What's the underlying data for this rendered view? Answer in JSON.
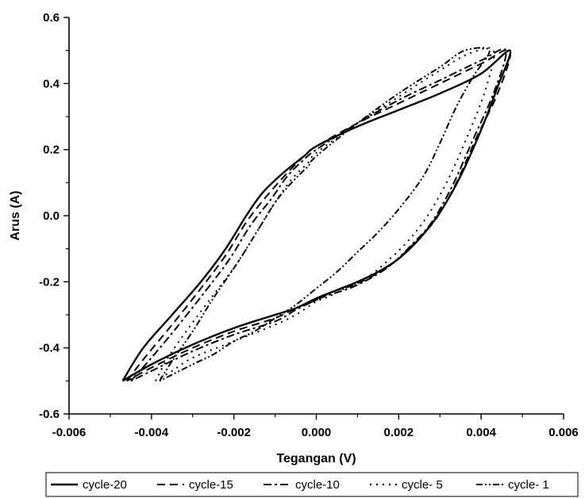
{
  "chart_data": {
    "type": "line",
    "title": "",
    "xlabel": "Tegangan (V)",
    "ylabel": "Arus (A)",
    "xlim": [
      -0.006,
      0.006
    ],
    "ylim": [
      -0.6,
      0.6
    ],
    "x_ticks": [
      -0.006,
      -0.004,
      -0.002,
      0.0,
      0.002,
      0.004,
      0.006
    ],
    "x_tick_labels": [
      "-0.006",
      "-0.004",
      "-0.002",
      "0.000",
      "0.002",
      "0.004",
      "0.006"
    ],
    "y_ticks": [
      -0.6,
      -0.4,
      -0.2,
      0.0,
      0.2,
      0.4,
      0.6
    ],
    "y_tick_labels": [
      "-0.6",
      "-0.4",
      "-0.2",
      "0.0",
      "0.2",
      "0.4",
      "0.6"
    ],
    "grid": false,
    "legend_position": "bottom",
    "series": [
      {
        "name": "cycle-20",
        "dash": "solid",
        "x": [
          -0.0047,
          -0.0042,
          -0.0035,
          -0.0028,
          -0.0022,
          -0.0017,
          -0.0013,
          -0.0008,
          -0.0003,
          0.0,
          0.001,
          0.002,
          0.003,
          0.004,
          0.0047,
          0.0044,
          0.004,
          0.0035,
          0.003,
          0.0025,
          0.002,
          0.0015,
          0.001,
          0.0005,
          0.0,
          -0.0005,
          -0.001,
          -0.002,
          -0.003,
          -0.004,
          -0.0047
        ],
        "y": [
          -0.5,
          -0.4,
          -0.3,
          -0.2,
          -0.1,
          0.0,
          0.07,
          0.13,
          0.18,
          0.21,
          0.27,
          0.32,
          0.37,
          0.43,
          0.5,
          0.39,
          0.26,
          0.12,
          0.01,
          -0.07,
          -0.13,
          -0.17,
          -0.2,
          -0.225,
          -0.25,
          -0.28,
          -0.3,
          -0.34,
          -0.39,
          -0.45,
          -0.5
        ]
      },
      {
        "name": "cycle-15",
        "dash": "dash",
        "x": [
          -0.0046,
          -0.0041,
          -0.0035,
          -0.0028,
          -0.0022,
          -0.0017,
          -0.0012,
          -0.0007,
          -0.0003,
          0.0,
          0.001,
          0.002,
          0.003,
          0.004,
          0.0047,
          0.0044,
          0.0039,
          0.0034,
          0.0029,
          0.0024,
          0.0019,
          0.0014,
          0.0009,
          0.0004,
          0.0,
          -0.0005,
          -0.001,
          -0.002,
          -0.003,
          -0.004,
          -0.0046
        ],
        "y": [
          -0.5,
          -0.42,
          -0.33,
          -0.22,
          -0.12,
          -0.02,
          0.06,
          0.13,
          0.18,
          0.21,
          0.28,
          0.34,
          0.4,
          0.46,
          0.5,
          0.37,
          0.24,
          0.1,
          -0.01,
          -0.08,
          -0.14,
          -0.18,
          -0.21,
          -0.23,
          -0.255,
          -0.28,
          -0.31,
          -0.35,
          -0.4,
          -0.46,
          -0.5
        ]
      },
      {
        "name": "cycle-10",
        "dash": "dashdot",
        "x": [
          -0.0045,
          -0.004,
          -0.0034,
          -0.0027,
          -0.0021,
          -0.0016,
          -0.0011,
          -0.0007,
          -0.0003,
          0.0,
          0.001,
          0.002,
          0.003,
          0.004,
          0.0046,
          0.0043,
          0.0038,
          0.0033,
          0.0028,
          0.0023,
          0.0018,
          0.0013,
          0.0008,
          0.0003,
          0.0,
          -0.0005,
          -0.001,
          -0.002,
          -0.003,
          -0.004,
          -0.0045
        ],
        "y": [
          -0.5,
          -0.43,
          -0.34,
          -0.23,
          -0.13,
          -0.03,
          0.05,
          0.12,
          0.17,
          0.2,
          0.28,
          0.35,
          0.41,
          0.47,
          0.5,
          0.37,
          0.23,
          0.09,
          -0.02,
          -0.09,
          -0.15,
          -0.19,
          -0.22,
          -0.24,
          -0.255,
          -0.285,
          -0.32,
          -0.36,
          -0.41,
          -0.47,
          -0.5
        ]
      },
      {
        "name": "cycle- 5",
        "dash": "dot",
        "x": [
          -0.0039,
          -0.0036,
          -0.0031,
          -0.0025,
          -0.0019,
          -0.0014,
          -0.001,
          -0.0006,
          -0.0002,
          0.0,
          0.001,
          0.002,
          0.003,
          0.0037,
          0.0043,
          0.0041,
          0.0037,
          0.0032,
          0.0027,
          0.0022,
          0.0017,
          0.0012,
          0.0007,
          0.0003,
          0.0,
          -0.0005,
          -0.001,
          -0.002,
          -0.003,
          -0.0035,
          -0.0039
        ],
        "y": [
          -0.5,
          -0.43,
          -0.34,
          -0.24,
          -0.14,
          -0.04,
          0.04,
          0.11,
          0.16,
          0.19,
          0.28,
          0.36,
          0.44,
          0.49,
          0.5,
          0.38,
          0.25,
          0.11,
          0.0,
          -0.08,
          -0.14,
          -0.19,
          -0.22,
          -0.245,
          -0.26,
          -0.3,
          -0.33,
          -0.38,
          -0.43,
          -0.47,
          -0.5
        ]
      },
      {
        "name": "cycle- 1",
        "dash": "dashdotdot",
        "x": [
          -0.0038,
          -0.0035,
          -0.003,
          -0.0025,
          -0.0019,
          -0.0014,
          -0.001,
          -0.0006,
          -0.0002,
          0.0,
          0.001,
          0.002,
          0.003,
          0.0036,
          0.0042,
          0.0038,
          0.0034,
          0.003,
          0.0026,
          0.002,
          0.0015,
          0.001,
          0.0005,
          0.0,
          -0.0005,
          -0.001,
          -0.0015,
          -0.002,
          -0.0025,
          -0.003,
          -0.0038
        ],
        "y": [
          -0.5,
          -0.44,
          -0.35,
          -0.25,
          -0.14,
          -0.04,
          0.04,
          0.1,
          0.15,
          0.18,
          0.28,
          0.37,
          0.45,
          0.5,
          0.5,
          0.42,
          0.33,
          0.22,
          0.12,
          0.02,
          -0.05,
          -0.11,
          -0.17,
          -0.22,
          -0.27,
          -0.31,
          -0.35,
          -0.38,
          -0.42,
          -0.45,
          -0.5
        ]
      }
    ]
  }
}
